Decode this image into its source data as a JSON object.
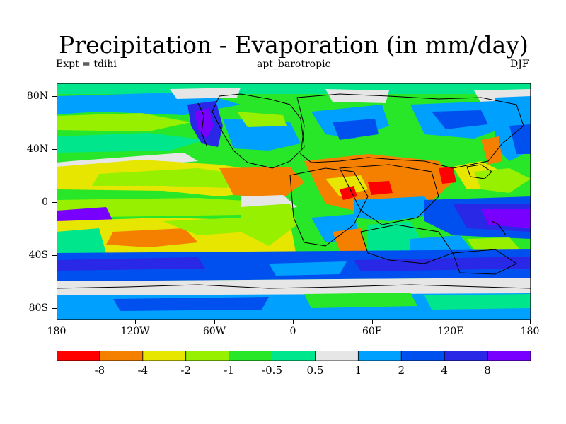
{
  "title": "Precipitation - Evaporation (in mm/day)",
  "subtitle_left": "Expt = tdihi",
  "subtitle_center": "apt_barotropic",
  "subtitle_right": "DJF",
  "lat_labels": [
    "80N",
    "40N",
    "0",
    "40S",
    "80S"
  ],
  "lon_labels": [
    "180",
    "120W",
    "60W",
    "0",
    "60E",
    "120E",
    "180"
  ],
  "colorbar": {
    "colors": [
      "#ff0000",
      "#f58000",
      "#e6e600",
      "#96f000",
      "#28e628",
      "#00e68c",
      "#e6e6e6",
      "#00a0ff",
      "#0050f0",
      "#2828e6",
      "#7800ff"
    ],
    "labels": [
      "-8",
      "-4",
      "-2",
      "-1",
      "-0.5",
      "0.5",
      "1",
      "2",
      "4",
      "8"
    ]
  },
  "land_outline_color": "#000000"
}
